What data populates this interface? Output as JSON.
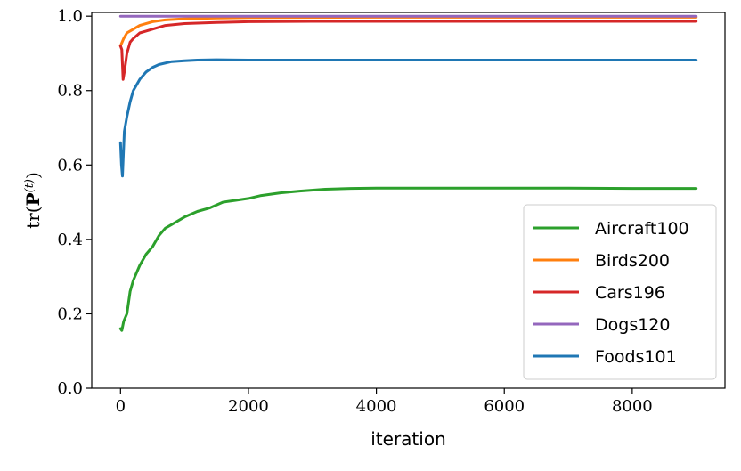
{
  "chart_data": {
    "type": "line",
    "xlabel": "iteration",
    "ylabel": "tr(P(t))",
    "xlim": [
      -450,
      9450
    ],
    "ylim": [
      0.0,
      1.01
    ],
    "x_ticks": [
      0,
      2000,
      4000,
      6000,
      8000
    ],
    "y_ticks": [
      0.0,
      0.2,
      0.4,
      0.6,
      0.8,
      1.0
    ],
    "x_tick_labels": [
      "0",
      "2000",
      "4000",
      "6000",
      "8000"
    ],
    "y_tick_labels": [
      "0.0",
      "0.2",
      "0.4",
      "0.6",
      "0.8",
      "1.0"
    ],
    "grid": false,
    "legend": "lower-right",
    "series": [
      {
        "name": "Aircraft100",
        "color": "#2ca02c",
        "points": [
          [
            0,
            0.16
          ],
          [
            20,
            0.155
          ],
          [
            50,
            0.18
          ],
          [
            100,
            0.2
          ],
          [
            150,
            0.26
          ],
          [
            200,
            0.29
          ],
          [
            300,
            0.33
          ],
          [
            400,
            0.36
          ],
          [
            500,
            0.38
          ],
          [
            600,
            0.41
          ],
          [
            700,
            0.43
          ],
          [
            800,
            0.44
          ],
          [
            1000,
            0.46
          ],
          [
            1200,
            0.475
          ],
          [
            1400,
            0.485
          ],
          [
            1600,
            0.5
          ],
          [
            1800,
            0.505
          ],
          [
            2000,
            0.51
          ],
          [
            2200,
            0.518
          ],
          [
            2500,
            0.525
          ],
          [
            2800,
            0.53
          ],
          [
            3200,
            0.535
          ],
          [
            3600,
            0.537
          ],
          [
            4000,
            0.538
          ],
          [
            5000,
            0.538
          ],
          [
            6000,
            0.538
          ],
          [
            7000,
            0.538
          ],
          [
            8000,
            0.537
          ],
          [
            9000,
            0.537
          ]
        ]
      },
      {
        "name": "Birds200",
        "color": "#ff7f0e",
        "points": [
          [
            0,
            0.92
          ],
          [
            50,
            0.94
          ],
          [
            100,
            0.955
          ],
          [
            200,
            0.965
          ],
          [
            300,
            0.975
          ],
          [
            500,
            0.985
          ],
          [
            700,
            0.99
          ],
          [
            1000,
            0.993
          ],
          [
            1500,
            0.995
          ],
          [
            2000,
            0.996
          ],
          [
            4000,
            0.997
          ],
          [
            6000,
            0.997
          ],
          [
            9000,
            0.997
          ]
        ]
      },
      {
        "name": "Cars196",
        "color": "#d62728",
        "points": [
          [
            0,
            0.92
          ],
          [
            20,
            0.91
          ],
          [
            40,
            0.83
          ],
          [
            60,
            0.85
          ],
          [
            100,
            0.9
          ],
          [
            150,
            0.93
          ],
          [
            200,
            0.94
          ],
          [
            300,
            0.955
          ],
          [
            400,
            0.96
          ],
          [
            500,
            0.965
          ],
          [
            700,
            0.975
          ],
          [
            1000,
            0.98
          ],
          [
            1500,
            0.983
          ],
          [
            2000,
            0.985
          ],
          [
            3000,
            0.986
          ],
          [
            4000,
            0.986
          ],
          [
            6000,
            0.986
          ],
          [
            9000,
            0.986
          ]
        ]
      },
      {
        "name": "Dogs120",
        "color": "#9467bd",
        "points": [
          [
            0,
            1.0
          ],
          [
            2000,
            1.0
          ],
          [
            4000,
            1.0
          ],
          [
            6000,
            1.0
          ],
          [
            9000,
            1.0
          ]
        ]
      },
      {
        "name": "Foods101",
        "color": "#1f77b4",
        "points": [
          [
            0,
            0.66
          ],
          [
            15,
            0.6
          ],
          [
            30,
            0.57
          ],
          [
            60,
            0.69
          ],
          [
            100,
            0.73
          ],
          [
            150,
            0.77
          ],
          [
            200,
            0.8
          ],
          [
            300,
            0.83
          ],
          [
            400,
            0.85
          ],
          [
            500,
            0.862
          ],
          [
            600,
            0.87
          ],
          [
            800,
            0.878
          ],
          [
            1000,
            0.88
          ],
          [
            1200,
            0.882
          ],
          [
            1500,
            0.883
          ],
          [
            2000,
            0.882
          ],
          [
            3000,
            0.882
          ],
          [
            4000,
            0.882
          ],
          [
            6000,
            0.882
          ],
          [
            9000,
            0.882
          ]
        ]
      }
    ]
  }
}
